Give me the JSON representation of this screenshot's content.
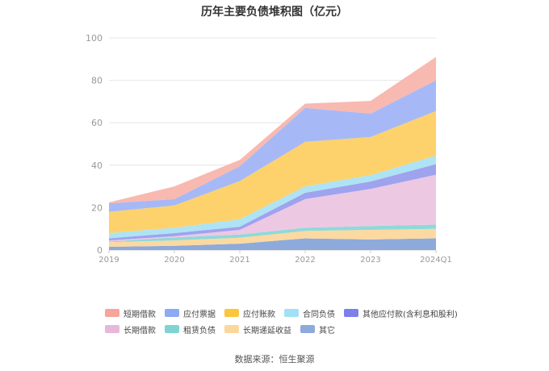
{
  "chart_data": {
    "type": "area",
    "title": "历年主要负债堆积图（亿元）",
    "categories": [
      "2019",
      "2020",
      "2021",
      "2022",
      "2023",
      "2024Q1"
    ],
    "ylim": [
      0,
      100
    ],
    "yticks": [
      0,
      20,
      40,
      60,
      80,
      100
    ],
    "stacked": true,
    "grid": true,
    "legend_position": "bottom",
    "series": [
      {
        "name": "其它",
        "color": "#8eaadb",
        "values": [
          1.5,
          2.0,
          3.0,
          5.5,
          5.0,
          5.5
        ]
      },
      {
        "name": "长期递延收益",
        "color": "#fcd9a0",
        "values": [
          2.2,
          2.5,
          2.8,
          3.5,
          4.5,
          4.5
        ]
      },
      {
        "name": "租赁负债",
        "color": "#8fd9d9",
        "values": [
          0.3,
          1.5,
          1.5,
          1.5,
          1.8,
          2.0
        ]
      },
      {
        "name": "长期借款",
        "color": "#edc8e3",
        "values": [
          0.5,
          0.5,
          2.2,
          13.5,
          17.5,
          23.5
        ]
      },
      {
        "name": "其他应付款(含利息和股利)",
        "color": "#9fa3ee",
        "values": [
          1.0,
          1.5,
          1.5,
          3.0,
          3.5,
          5.0
        ]
      },
      {
        "name": "合同负债",
        "color": "#ade3f5",
        "values": [
          2.5,
          2.5,
          3.5,
          3.0,
          3.0,
          4.0
        ]
      },
      {
        "name": "应付账款",
        "color": "#fdd26c",
        "values": [
          10.0,
          10.5,
          18.0,
          21.0,
          18.0,
          21.0
        ]
      },
      {
        "name": "应付票据",
        "color": "#a6b9f6",
        "values": [
          4.0,
          3.0,
          7.0,
          16.0,
          11.0,
          14.5
        ]
      },
      {
        "name": "短期借款",
        "color": "#f8b9b0",
        "values": [
          0.5,
          6.0,
          3.0,
          2.0,
          6.0,
          11.0
        ]
      }
    ]
  },
  "legend": [
    {
      "label": "短期借款",
      "color": "#f8a49a"
    },
    {
      "label": "应付票据",
      "color": "#8eaaf5"
    },
    {
      "label": "应付账款",
      "color": "#fbc63d"
    },
    {
      "label": "合同负债",
      "color": "#a2e0f5"
    },
    {
      "label": "其他应付款(含利息和股利)",
      "color": "#7b80ec"
    },
    {
      "label": "长期借款",
      "color": "#e8b7dc"
    },
    {
      "label": "租赁负债",
      "color": "#7fd3d3"
    },
    {
      "label": "长期递延收益",
      "color": "#fbd79b"
    },
    {
      "label": "其它",
      "color": "#8eaadb"
    }
  ],
  "source": "数据来源：恒生聚源"
}
